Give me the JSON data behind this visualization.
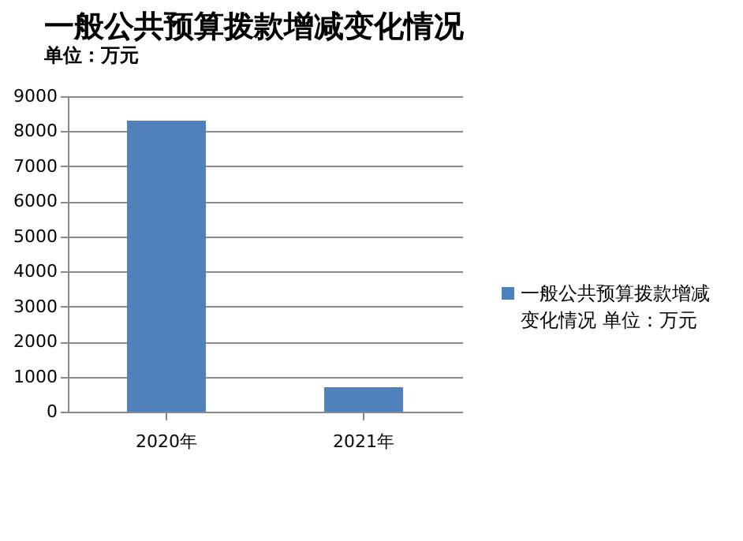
{
  "chart_data": {
    "type": "bar",
    "title": "一般公共预算拨款增减变化情况",
    "subtitle": "单位：万元",
    "categories": [
      "2020年",
      "2021年"
    ],
    "series": [
      {
        "name": "一般公共预算拨款增减变化情况 单位：万元",
        "color": "#4f81bd",
        "values": [
          8300,
          700
        ]
      }
    ],
    "ylim": [
      0,
      9000
    ],
    "yticks": [
      0,
      1000,
      2000,
      3000,
      4000,
      5000,
      6000,
      7000,
      8000,
      9000
    ],
    "grid": "y",
    "legend": "right"
  }
}
